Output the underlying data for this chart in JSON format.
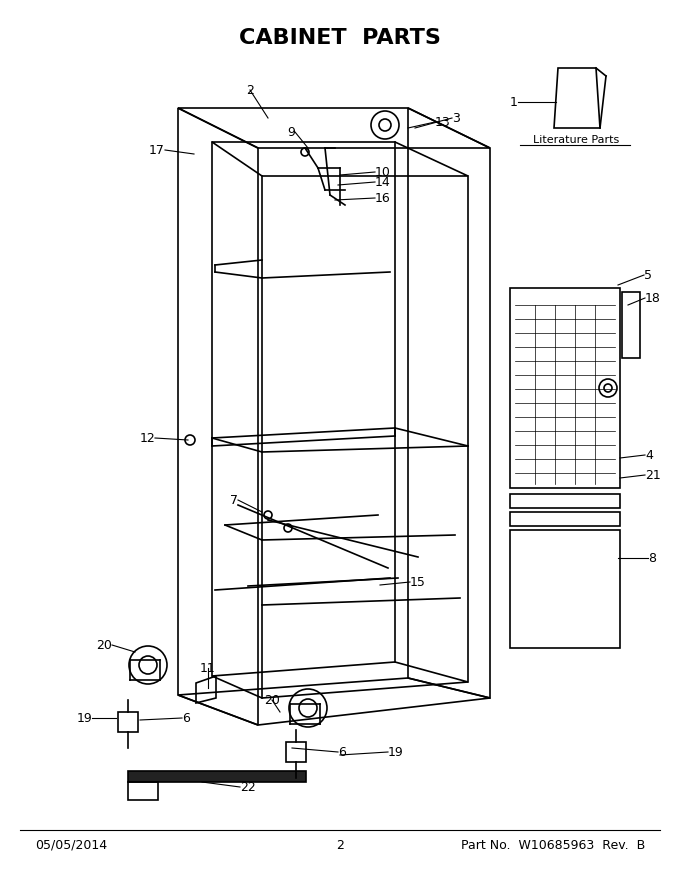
{
  "title": "CABINET  PARTS",
  "title_fontsize": 16,
  "title_fontweight": "bold",
  "footer_left": "05/05/2014",
  "footer_center": "2",
  "footer_right": "Part No.  W10685963  Rev.  B",
  "footer_fontsize": 9,
  "lit_parts_label": "Literature Parts",
  "background_color": "#ffffff",
  "line_color": "#000000",
  "label_fontsize": 9,
  "fig_width": 6.8,
  "fig_height": 8.8,
  "dpi": 100
}
